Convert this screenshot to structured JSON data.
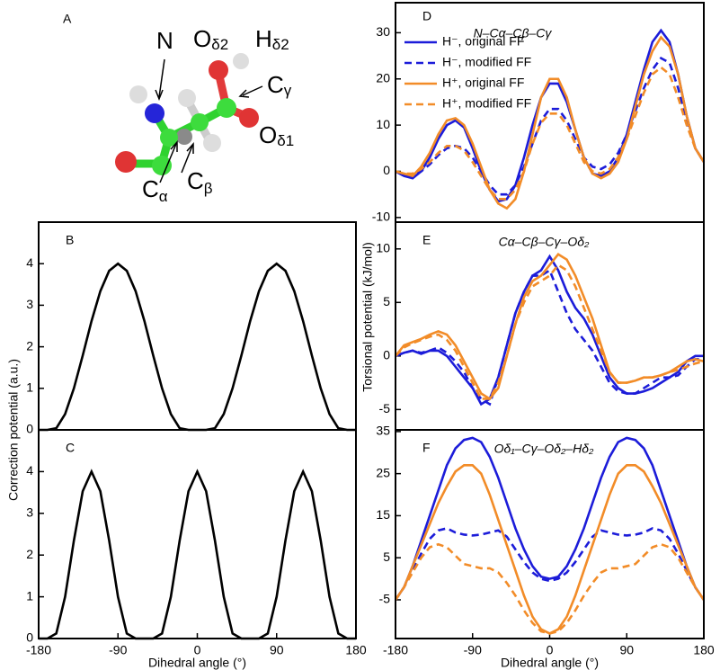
{
  "panel_a": {
    "label": "A",
    "atoms": [
      {
        "symbol": "N"
      },
      {
        "symbol": "O",
        "sub": "δ2"
      },
      {
        "symbol": "H",
        "sub": "δ2"
      },
      {
        "symbol": "C",
        "sub": "γ"
      },
      {
        "symbol": "O",
        "sub": "δ1"
      },
      {
        "symbol": "C",
        "sub": "α"
      },
      {
        "symbol": "C",
        "sub": "β"
      }
    ]
  },
  "chart_data": [
    {
      "type": "line",
      "label": "B",
      "ylabel": "Correction potential (a.u.)",
      "x": [
        -180,
        -170,
        -160,
        -150,
        -140,
        -130,
        -120,
        -110,
        -100,
        -90,
        -80,
        -70,
        -60,
        -50,
        -40,
        -30,
        -20,
        -10,
        0,
        10,
        20,
        30,
        40,
        50,
        60,
        70,
        80,
        90,
        100,
        110,
        120,
        130,
        140,
        150,
        160,
        170,
        180
      ],
      "xlim": [
        -180,
        180
      ],
      "ylim": [
        0,
        5
      ],
      "yticks": [
        0,
        1,
        2,
        3,
        4
      ],
      "series": [
        {
          "color": "#000000",
          "line_style": "solid",
          "values": [
            0,
            0,
            0.04,
            0.38,
            1,
            1.79,
            2.62,
            3.34,
            3.83,
            4,
            3.83,
            3.34,
            2.62,
            1.79,
            1,
            0.38,
            0.04,
            0,
            0,
            0,
            0.04,
            0.38,
            1,
            1.79,
            2.62,
            3.34,
            3.83,
            4,
            3.83,
            3.34,
            2.62,
            1.79,
            1,
            0.38,
            0.04,
            0,
            0
          ]
        }
      ]
    },
    {
      "type": "line",
      "label": "C",
      "xlabel": "Dihedral angle (°)",
      "x": [
        -180,
        -170,
        -160,
        -150,
        -140,
        -130,
        -120,
        -110,
        -100,
        -90,
        -80,
        -70,
        -60,
        -50,
        -40,
        -30,
        -20,
        -10,
        0,
        10,
        20,
        30,
        40,
        50,
        60,
        70,
        80,
        90,
        100,
        110,
        120,
        130,
        140,
        150,
        160,
        170,
        180
      ],
      "xlim": [
        -180,
        180
      ],
      "xticks": [
        -180,
        -90,
        0,
        90,
        180
      ],
      "ylim": [
        0,
        5
      ],
      "yticks": [
        0,
        1,
        2,
        3,
        4
      ],
      "series": [
        {
          "color": "#000000",
          "line_style": "solid",
          "values": [
            0,
            0,
            0.12,
            1,
            2.35,
            3.53,
            4,
            3.53,
            2.35,
            1,
            0.12,
            0,
            0,
            0,
            0.12,
            1,
            2.35,
            3.53,
            4,
            3.53,
            2.35,
            1,
            0.12,
            0,
            0,
            0,
            0.12,
            1,
            2.35,
            3.53,
            4,
            3.53,
            2.35,
            1,
            0.12,
            0,
            0
          ]
        }
      ]
    },
    {
      "type": "line",
      "label": "D",
      "title": "N–Cα–Cβ–Cγ",
      "legend": "upper left",
      "x": [
        -180,
        -170,
        -160,
        -150,
        -140,
        -130,
        -120,
        -110,
        -100,
        -90,
        -80,
        -70,
        -60,
        -50,
        -40,
        -30,
        -20,
        -10,
        0,
        10,
        20,
        30,
        40,
        50,
        60,
        70,
        80,
        90,
        100,
        110,
        120,
        130,
        140,
        150,
        160,
        170,
        180
      ],
      "xlim": [
        -180,
        180
      ],
      "ylim": [
        -11,
        36.5
      ],
      "yticks": [
        -10,
        0,
        10,
        20,
        30
      ],
      "series": [
        {
          "name": "H⁻, original FF",
          "color": "#1c1cd9",
          "line_style": "solid",
          "values": [
            0,
            -1,
            -1.5,
            0,
            3,
            7,
            10,
            11,
            9.5,
            5,
            0,
            -4,
            -6.5,
            -6,
            -3,
            3,
            10,
            16,
            19,
            19,
            15,
            9,
            3,
            -0.5,
            -1,
            0,
            3,
            8,
            15,
            22,
            28,
            30.5,
            28,
            21,
            12,
            5,
            2
          ]
        },
        {
          "name": "H⁻, modified FF",
          "color": "#1c1cd9",
          "line_style": "dashed",
          "values": [
            0,
            -1,
            -1,
            0,
            1.5,
            3.5,
            5,
            5.5,
            5,
            3,
            0,
            -3,
            -5,
            -5,
            -3,
            1,
            6,
            11,
            13.5,
            13.5,
            11,
            7,
            3,
            1,
            0.5,
            1.5,
            4,
            8,
            13,
            18,
            22,
            24.5,
            23.5,
            18,
            11,
            5,
            2
          ]
        },
        {
          "name": "H⁺, original FF",
          "color": "#f28c28",
          "line_style": "solid",
          "values": [
            0,
            -0.5,
            -1,
            1,
            4,
            8,
            11,
            11.5,
            10,
            6,
            1,
            -4,
            -7,
            -8,
            -6,
            0,
            8,
            16,
            20,
            20,
            16,
            9,
            3,
            -0.5,
            -1.5,
            -0.5,
            2,
            7,
            14,
            21,
            26,
            29,
            27,
            21,
            12,
            5,
            2
          ]
        },
        {
          "name": "H⁺, modified FF",
          "color": "#f28c28",
          "line_style": "dashed",
          "values": [
            0,
            -0.5,
            -0.5,
            0.5,
            2,
            4,
            5.5,
            5.5,
            4.5,
            2,
            -1,
            -4,
            -6,
            -6,
            -4,
            0,
            6,
            10.5,
            12.5,
            12.5,
            10,
            6,
            2,
            0,
            -0.5,
            0.5,
            3,
            7,
            12,
            17,
            21,
            22.5,
            21,
            16,
            10,
            5,
            2
          ]
        }
      ]
    },
    {
      "type": "line",
      "label": "E",
      "title": "Cα–Cβ–Cγ–Oδ₂",
      "ylabel": "Torsional potential (kJ/mol)",
      "x": [
        -180,
        -170,
        -160,
        -150,
        -140,
        -130,
        -120,
        -110,
        -100,
        -90,
        -80,
        -70,
        -60,
        -50,
        -40,
        -30,
        -20,
        -10,
        0,
        10,
        20,
        30,
        40,
        50,
        60,
        70,
        80,
        90,
        100,
        110,
        120,
        130,
        140,
        150,
        160,
        170,
        180
      ],
      "xlim": [
        -180,
        180
      ],
      "ylim": [
        -6.9,
        12.5
      ],
      "yticks": [
        -5,
        0,
        5,
        10
      ],
      "series": [
        {
          "color": "#1c1cd9",
          "line_style": "solid",
          "values": [
            0,
            0.3,
            0.5,
            0.2,
            0.5,
            0.5,
            0,
            -1,
            -2,
            -3,
            -4.5,
            -4,
            -2,
            1,
            4,
            6,
            7.5,
            8,
            9.3,
            8,
            6,
            4.5,
            3.5,
            2,
            0,
            -2,
            -3,
            -3.5,
            -3.5,
            -3.3,
            -3,
            -2.5,
            -2,
            -1.5,
            -0.5,
            0,
            0
          ]
        },
        {
          "color": "#1c1cd9",
          "line_style": "dashed",
          "values": [
            0,
            0.3,
            0.5,
            0.3,
            0.5,
            0.8,
            0.3,
            -0.5,
            -1.5,
            -3,
            -4,
            -4.5,
            -2,
            1,
            4,
            6,
            7.5,
            7.5,
            8,
            6,
            4,
            2.5,
            1.5,
            0.5,
            -1,
            -2.5,
            -3.3,
            -3.5,
            -3.5,
            -3,
            -2.5,
            -2,
            -2,
            -1.8,
            -1,
            -0.3,
            -0.3
          ]
        },
        {
          "color": "#f28c28",
          "line_style": "solid",
          "values": [
            0,
            1,
            1.3,
            1.6,
            2,
            2.3,
            2,
            1,
            -0.5,
            -2,
            -3.5,
            -4,
            -3,
            0,
            3,
            5.5,
            7,
            7.5,
            8.5,
            9.5,
            9,
            7.5,
            5.5,
            3.5,
            1,
            -1.5,
            -2.5,
            -2.5,
            -2.3,
            -2,
            -2,
            -1.8,
            -1.5,
            -1,
            -0.5,
            -0.3,
            -0.5
          ]
        },
        {
          "color": "#f28c28",
          "line_style": "dashed",
          "values": [
            0,
            0.8,
            1.2,
            1.5,
            1.8,
            2,
            1.5,
            0.5,
            -1,
            -2.5,
            -4,
            -4,
            -2.5,
            0,
            3,
            5,
            6.5,
            7,
            7.5,
            8.5,
            8,
            6.5,
            4.5,
            2.5,
            0.5,
            -1.5,
            -2.5,
            -2.5,
            -2.3,
            -2,
            -2,
            -1.8,
            -1.5,
            -1.3,
            -1,
            -0.7,
            -0.5
          ]
        }
      ]
    },
    {
      "type": "line",
      "label": "F",
      "title": "Oδ₁–Cγ–Oδ₂–Hδ₂",
      "xlabel": "Dihedral angle (°)",
      "x": [
        -180,
        -170,
        -160,
        -150,
        -140,
        -130,
        -120,
        -110,
        -100,
        -90,
        -80,
        -70,
        -60,
        -50,
        -40,
        -30,
        -20,
        -10,
        0,
        10,
        20,
        30,
        40,
        50,
        60,
        70,
        80,
        90,
        100,
        110,
        120,
        130,
        140,
        150,
        160,
        170,
        180
      ],
      "xlim": [
        -180,
        180
      ],
      "xticks": [
        -180,
        -90,
        0,
        90,
        180
      ],
      "ylim": [
        -14.2,
        35.4
      ],
      "yticks": [
        -5,
        5,
        15,
        25,
        35
      ],
      "series": [
        {
          "color": "#1c1cd9",
          "line_style": "solid",
          "values": [
            -5,
            -2,
            3,
            9,
            15,
            21,
            27,
            31,
            33,
            33.5,
            32.5,
            29,
            24,
            18,
            12,
            7,
            3,
            0.5,
            0,
            0.5,
            3,
            7,
            12,
            18,
            24,
            29,
            32.5,
            33.5,
            33,
            31,
            27,
            21,
            15,
            9,
            3,
            -2,
            -5
          ]
        },
        {
          "color": "#1c1cd9",
          "line_style": "dashed",
          "values": [
            -5,
            -2,
            2,
            6,
            9.5,
            11.5,
            12,
            11,
            10.5,
            10.3,
            10.5,
            11,
            11.5,
            10,
            7,
            4,
            1.5,
            0,
            -0.5,
            0,
            1.5,
            4,
            7,
            10,
            11.5,
            11,
            10.5,
            10.3,
            10.5,
            11,
            12,
            11.5,
            9.5,
            6,
            2,
            -2,
            -5
          ]
        },
        {
          "color": "#f28c28",
          "line_style": "solid",
          "values": [
            -5,
            -2,
            3,
            8,
            13,
            18,
            22,
            25.5,
            27,
            27,
            25,
            20,
            14,
            8,
            2,
            -4,
            -9,
            -12,
            -13,
            -12,
            -9,
            -4,
            2,
            8,
            14,
            20,
            25,
            27,
            27,
            25.5,
            22,
            18,
            13,
            8,
            3,
            -2,
            -5
          ]
        },
        {
          "color": "#f28c28",
          "line_style": "dashed",
          "values": [
            -5,
            -2,
            1.5,
            5,
            7.5,
            8.2,
            7.5,
            5.5,
            3.5,
            3,
            2.5,
            2.5,
            1.5,
            -1,
            -4,
            -7.5,
            -10.5,
            -12.5,
            -13,
            -12.5,
            -10.5,
            -7.5,
            -4,
            -1,
            1.5,
            2.5,
            2.5,
            3,
            3.5,
            5.5,
            7.5,
            8.2,
            7.5,
            5,
            1.5,
            -2,
            -5
          ]
        }
      ]
    }
  ]
}
